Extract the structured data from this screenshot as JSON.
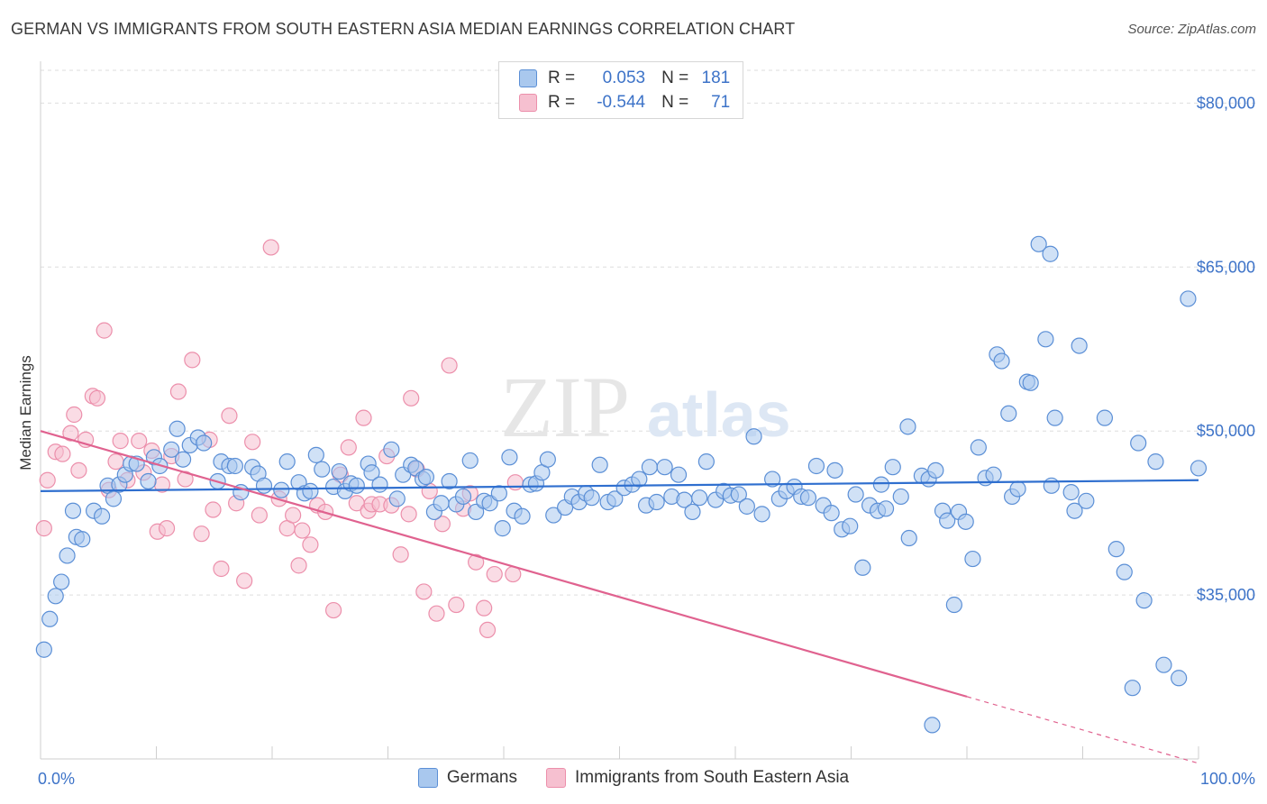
{
  "header": {
    "title": "GERMAN VS IMMIGRANTS FROM SOUTH EASTERN ASIA MEDIAN EARNINGS CORRELATION CHART",
    "source": "Source: ZipAtlas.com"
  },
  "watermark": {
    "zip": "ZIP",
    "atlas": "atlas"
  },
  "legend": {
    "rows": [
      {
        "r_label": "R =",
        "r_value": "0.053",
        "n_label": "N =",
        "n_value": "181",
        "color": "#6fa0e0"
      },
      {
        "r_label": "R =",
        "r_value": "-0.544",
        "n_label": "N =",
        "n_value": "71",
        "color": "#f3a0b8"
      }
    ]
  },
  "bottom_legend": {
    "germans": "Germans",
    "immigrants": "Immigrants from South Eastern Asia"
  },
  "colors": {
    "blue_fill": "#a9c8ee",
    "blue_stroke": "#5b8fd6",
    "blue_line": "#2f6fcf",
    "pink_fill": "#f6c0d0",
    "pink_stroke": "#ec8fab",
    "pink_line": "#e0628f",
    "tick_text": "#3d73c8"
  },
  "chart_data": {
    "type": "scatter",
    "title": "GERMAN VS IMMIGRANTS FROM SOUTH EASTERN ASIA MEDIAN EARNINGS CORRELATION CHART",
    "ylabel": "Median Earnings",
    "xlabel": "",
    "xlim": [
      0,
      100
    ],
    "ylim": [
      20000,
      83000
    ],
    "x_tick_labels": [
      "0.0%",
      "100.0%"
    ],
    "y_ticks": [
      35000,
      50000,
      65000,
      80000
    ],
    "y_tick_labels": [
      "$35,000",
      "$50,000",
      "$65,000",
      "$80,000"
    ],
    "grid": true,
    "legend_position": "top-center",
    "series": [
      {
        "name": "Germans",
        "r": 0.053,
        "n": 181,
        "trend": {
          "x0": 0,
          "y0": 44500,
          "x1": 100,
          "y1": 45500
        },
        "points": [
          [
            0.3,
            30000
          ],
          [
            0.8,
            32800
          ],
          [
            1.3,
            34900
          ],
          [
            1.8,
            36200
          ],
          [
            2.3,
            38600
          ],
          [
            2.8,
            42700
          ],
          [
            3.1,
            40300
          ],
          [
            3.6,
            40100
          ],
          [
            4.6,
            42700
          ],
          [
            5.3,
            42200
          ],
          [
            5.8,
            45000
          ],
          [
            6.3,
            43800
          ],
          [
            6.8,
            45100
          ],
          [
            7.3,
            46000
          ],
          [
            7.8,
            47000
          ],
          [
            8.3,
            47000
          ],
          [
            9.3,
            45400
          ],
          [
            9.8,
            47600
          ],
          [
            10.3,
            46800
          ],
          [
            11.3,
            48300
          ],
          [
            11.8,
            50200
          ],
          [
            12.3,
            47400
          ],
          [
            12.9,
            48700
          ],
          [
            13.6,
            49400
          ],
          [
            14.1,
            48900
          ],
          [
            15.3,
            45400
          ],
          [
            15.6,
            47200
          ],
          [
            16.3,
            46800
          ],
          [
            16.8,
            46800
          ],
          [
            17.3,
            44400
          ],
          [
            18.3,
            46700
          ],
          [
            18.8,
            46100
          ],
          [
            19.3,
            45000
          ],
          [
            20.8,
            44600
          ],
          [
            21.3,
            47200
          ],
          [
            22.3,
            45300
          ],
          [
            22.8,
            44300
          ],
          [
            23.3,
            44500
          ],
          [
            23.8,
            47800
          ],
          [
            24.3,
            46500
          ],
          [
            25.3,
            44900
          ],
          [
            25.8,
            46300
          ],
          [
            26.3,
            44500
          ],
          [
            26.8,
            45200
          ],
          [
            27.3,
            45000
          ],
          [
            28.3,
            47000
          ],
          [
            28.6,
            46200
          ],
          [
            29.3,
            45100
          ],
          [
            30.3,
            48300
          ],
          [
            30.8,
            43800
          ],
          [
            31.3,
            46000
          ],
          [
            32.0,
            46900
          ],
          [
            32.4,
            46600
          ],
          [
            33.0,
            45600
          ],
          [
            33.3,
            45800
          ],
          [
            34.0,
            42600
          ],
          [
            34.6,
            43400
          ],
          [
            35.3,
            45400
          ],
          [
            35.9,
            43300
          ],
          [
            36.5,
            44000
          ],
          [
            37.1,
            47300
          ],
          [
            37.6,
            42600
          ],
          [
            38.3,
            43600
          ],
          [
            38.8,
            43400
          ],
          [
            39.6,
            44300
          ],
          [
            39.9,
            41100
          ],
          [
            40.5,
            47600
          ],
          [
            40.9,
            42700
          ],
          [
            41.6,
            42200
          ],
          [
            42.3,
            45100
          ],
          [
            42.8,
            45200
          ],
          [
            43.3,
            46200
          ],
          [
            43.8,
            47400
          ],
          [
            44.3,
            42300
          ],
          [
            45.3,
            43000
          ],
          [
            45.9,
            44000
          ],
          [
            46.5,
            43500
          ],
          [
            47.1,
            44300
          ],
          [
            47.6,
            43900
          ],
          [
            48.3,
            46900
          ],
          [
            49.0,
            43500
          ],
          [
            49.6,
            43800
          ],
          [
            50.4,
            44800
          ],
          [
            51.1,
            45100
          ],
          [
            51.7,
            45600
          ],
          [
            52.3,
            43200
          ],
          [
            52.6,
            46700
          ],
          [
            53.2,
            43500
          ],
          [
            53.9,
            46700
          ],
          [
            54.5,
            44000
          ],
          [
            55.1,
            46000
          ],
          [
            55.6,
            43700
          ],
          [
            56.3,
            42600
          ],
          [
            56.9,
            43900
          ],
          [
            57.5,
            47200
          ],
          [
            58.3,
            43700
          ],
          [
            59.0,
            44500
          ],
          [
            59.6,
            44100
          ],
          [
            60.3,
            44200
          ],
          [
            61.0,
            43100
          ],
          [
            61.6,
            49500
          ],
          [
            62.3,
            42400
          ],
          [
            63.2,
            45600
          ],
          [
            63.8,
            43800
          ],
          [
            64.4,
            44500
          ],
          [
            65.1,
            44900
          ],
          [
            65.7,
            44000
          ],
          [
            66.3,
            43900
          ],
          [
            67.0,
            46800
          ],
          [
            67.6,
            43200
          ],
          [
            68.3,
            42500
          ],
          [
            68.6,
            46400
          ],
          [
            69.2,
            41000
          ],
          [
            69.9,
            41300
          ],
          [
            70.4,
            44200
          ],
          [
            71.0,
            37500
          ],
          [
            71.6,
            43200
          ],
          [
            72.3,
            42700
          ],
          [
            72.6,
            45100
          ],
          [
            73.0,
            42900
          ],
          [
            73.6,
            46700
          ],
          [
            74.3,
            44000
          ],
          [
            74.9,
            50400
          ],
          [
            75.0,
            40200
          ],
          [
            76.1,
            45900
          ],
          [
            76.7,
            45600
          ],
          [
            77.3,
            46400
          ],
          [
            77.9,
            42700
          ],
          [
            78.3,
            41800
          ],
          [
            78.9,
            34100
          ],
          [
            79.3,
            42600
          ],
          [
            79.9,
            41700
          ],
          [
            80.5,
            38300
          ],
          [
            81.0,
            48500
          ],
          [
            81.6,
            45700
          ],
          [
            82.3,
            46000
          ],
          [
            83.9,
            44000
          ],
          [
            84.4,
            44700
          ],
          [
            82.6,
            57000
          ],
          [
            83.0,
            56400
          ],
          [
            83.6,
            51600
          ],
          [
            85.2,
            54500
          ],
          [
            85.5,
            54400
          ],
          [
            86.2,
            67100
          ],
          [
            86.8,
            58400
          ],
          [
            87.3,
            45000
          ],
          [
            87.6,
            51200
          ],
          [
            87.2,
            66200
          ],
          [
            89.0,
            44400
          ],
          [
            89.3,
            42700
          ],
          [
            89.7,
            57800
          ],
          [
            90.3,
            43600
          ],
          [
            91.9,
            51200
          ],
          [
            92.9,
            39200
          ],
          [
            93.6,
            37100
          ],
          [
            94.3,
            26500
          ],
          [
            94.8,
            48900
          ],
          [
            95.3,
            34500
          ],
          [
            96.3,
            47200
          ],
          [
            97.0,
            28600
          ],
          [
            98.3,
            27400
          ],
          [
            99.1,
            62100
          ],
          [
            100.0,
            46600
          ],
          [
            77.0,
            23100
          ]
        ]
      },
      {
        "name": "Immigrants from South Eastern Asia",
        "r": -0.544,
        "n": 71,
        "trend": {
          "x0": 0,
          "y0": 50000,
          "x1": 80,
          "y1": 25700,
          "dashed_to_x": 100,
          "dashed_to_y": 19600
        },
        "points": [
          [
            0.3,
            41100
          ],
          [
            0.6,
            45500
          ],
          [
            1.3,
            48100
          ],
          [
            1.9,
            47900
          ],
          [
            2.6,
            49800
          ],
          [
            2.9,
            51500
          ],
          [
            3.3,
            46400
          ],
          [
            3.9,
            49200
          ],
          [
            4.5,
            53200
          ],
          [
            4.9,
            53000
          ],
          [
            5.5,
            59200
          ],
          [
            5.9,
            44600
          ],
          [
            6.5,
            47200
          ],
          [
            6.9,
            49100
          ],
          [
            7.5,
            45500
          ],
          [
            8.5,
            49100
          ],
          [
            8.9,
            46200
          ],
          [
            9.6,
            48200
          ],
          [
            10.1,
            40800
          ],
          [
            10.5,
            45100
          ],
          [
            10.9,
            41100
          ],
          [
            11.3,
            47700
          ],
          [
            11.9,
            53600
          ],
          [
            12.5,
            45600
          ],
          [
            13.1,
            56500
          ],
          [
            13.9,
            40600
          ],
          [
            14.6,
            49200
          ],
          [
            14.9,
            42800
          ],
          [
            15.6,
            37400
          ],
          [
            16.3,
            51400
          ],
          [
            16.9,
            43400
          ],
          [
            17.6,
            36300
          ],
          [
            18.3,
            49000
          ],
          [
            18.9,
            42300
          ],
          [
            19.9,
            66800
          ],
          [
            20.6,
            43800
          ],
          [
            21.3,
            41100
          ],
          [
            21.8,
            42300
          ],
          [
            22.3,
            37700
          ],
          [
            22.6,
            40900
          ],
          [
            23.3,
            39600
          ],
          [
            23.9,
            43200
          ],
          [
            24.6,
            42600
          ],
          [
            25.3,
            33600
          ],
          [
            25.9,
            46000
          ],
          [
            26.6,
            48500
          ],
          [
            27.3,
            43400
          ],
          [
            27.9,
            51200
          ],
          [
            28.3,
            42700
          ],
          [
            28.6,
            43300
          ],
          [
            29.3,
            43300
          ],
          [
            29.9,
            47700
          ],
          [
            30.3,
            43200
          ],
          [
            31.1,
            38700
          ],
          [
            31.8,
            42400
          ],
          [
            32.0,
            53000
          ],
          [
            32.5,
            46500
          ],
          [
            33.1,
            35300
          ],
          [
            33.6,
            44500
          ],
          [
            34.2,
            33300
          ],
          [
            34.7,
            41500
          ],
          [
            35.3,
            56000
          ],
          [
            35.9,
            34100
          ],
          [
            36.5,
            42900
          ],
          [
            37.1,
            44300
          ],
          [
            37.6,
            38000
          ],
          [
            38.3,
            33800
          ],
          [
            38.6,
            31800
          ],
          [
            39.2,
            36900
          ],
          [
            40.8,
            36900
          ],
          [
            41.0,
            45300
          ]
        ]
      }
    ]
  }
}
